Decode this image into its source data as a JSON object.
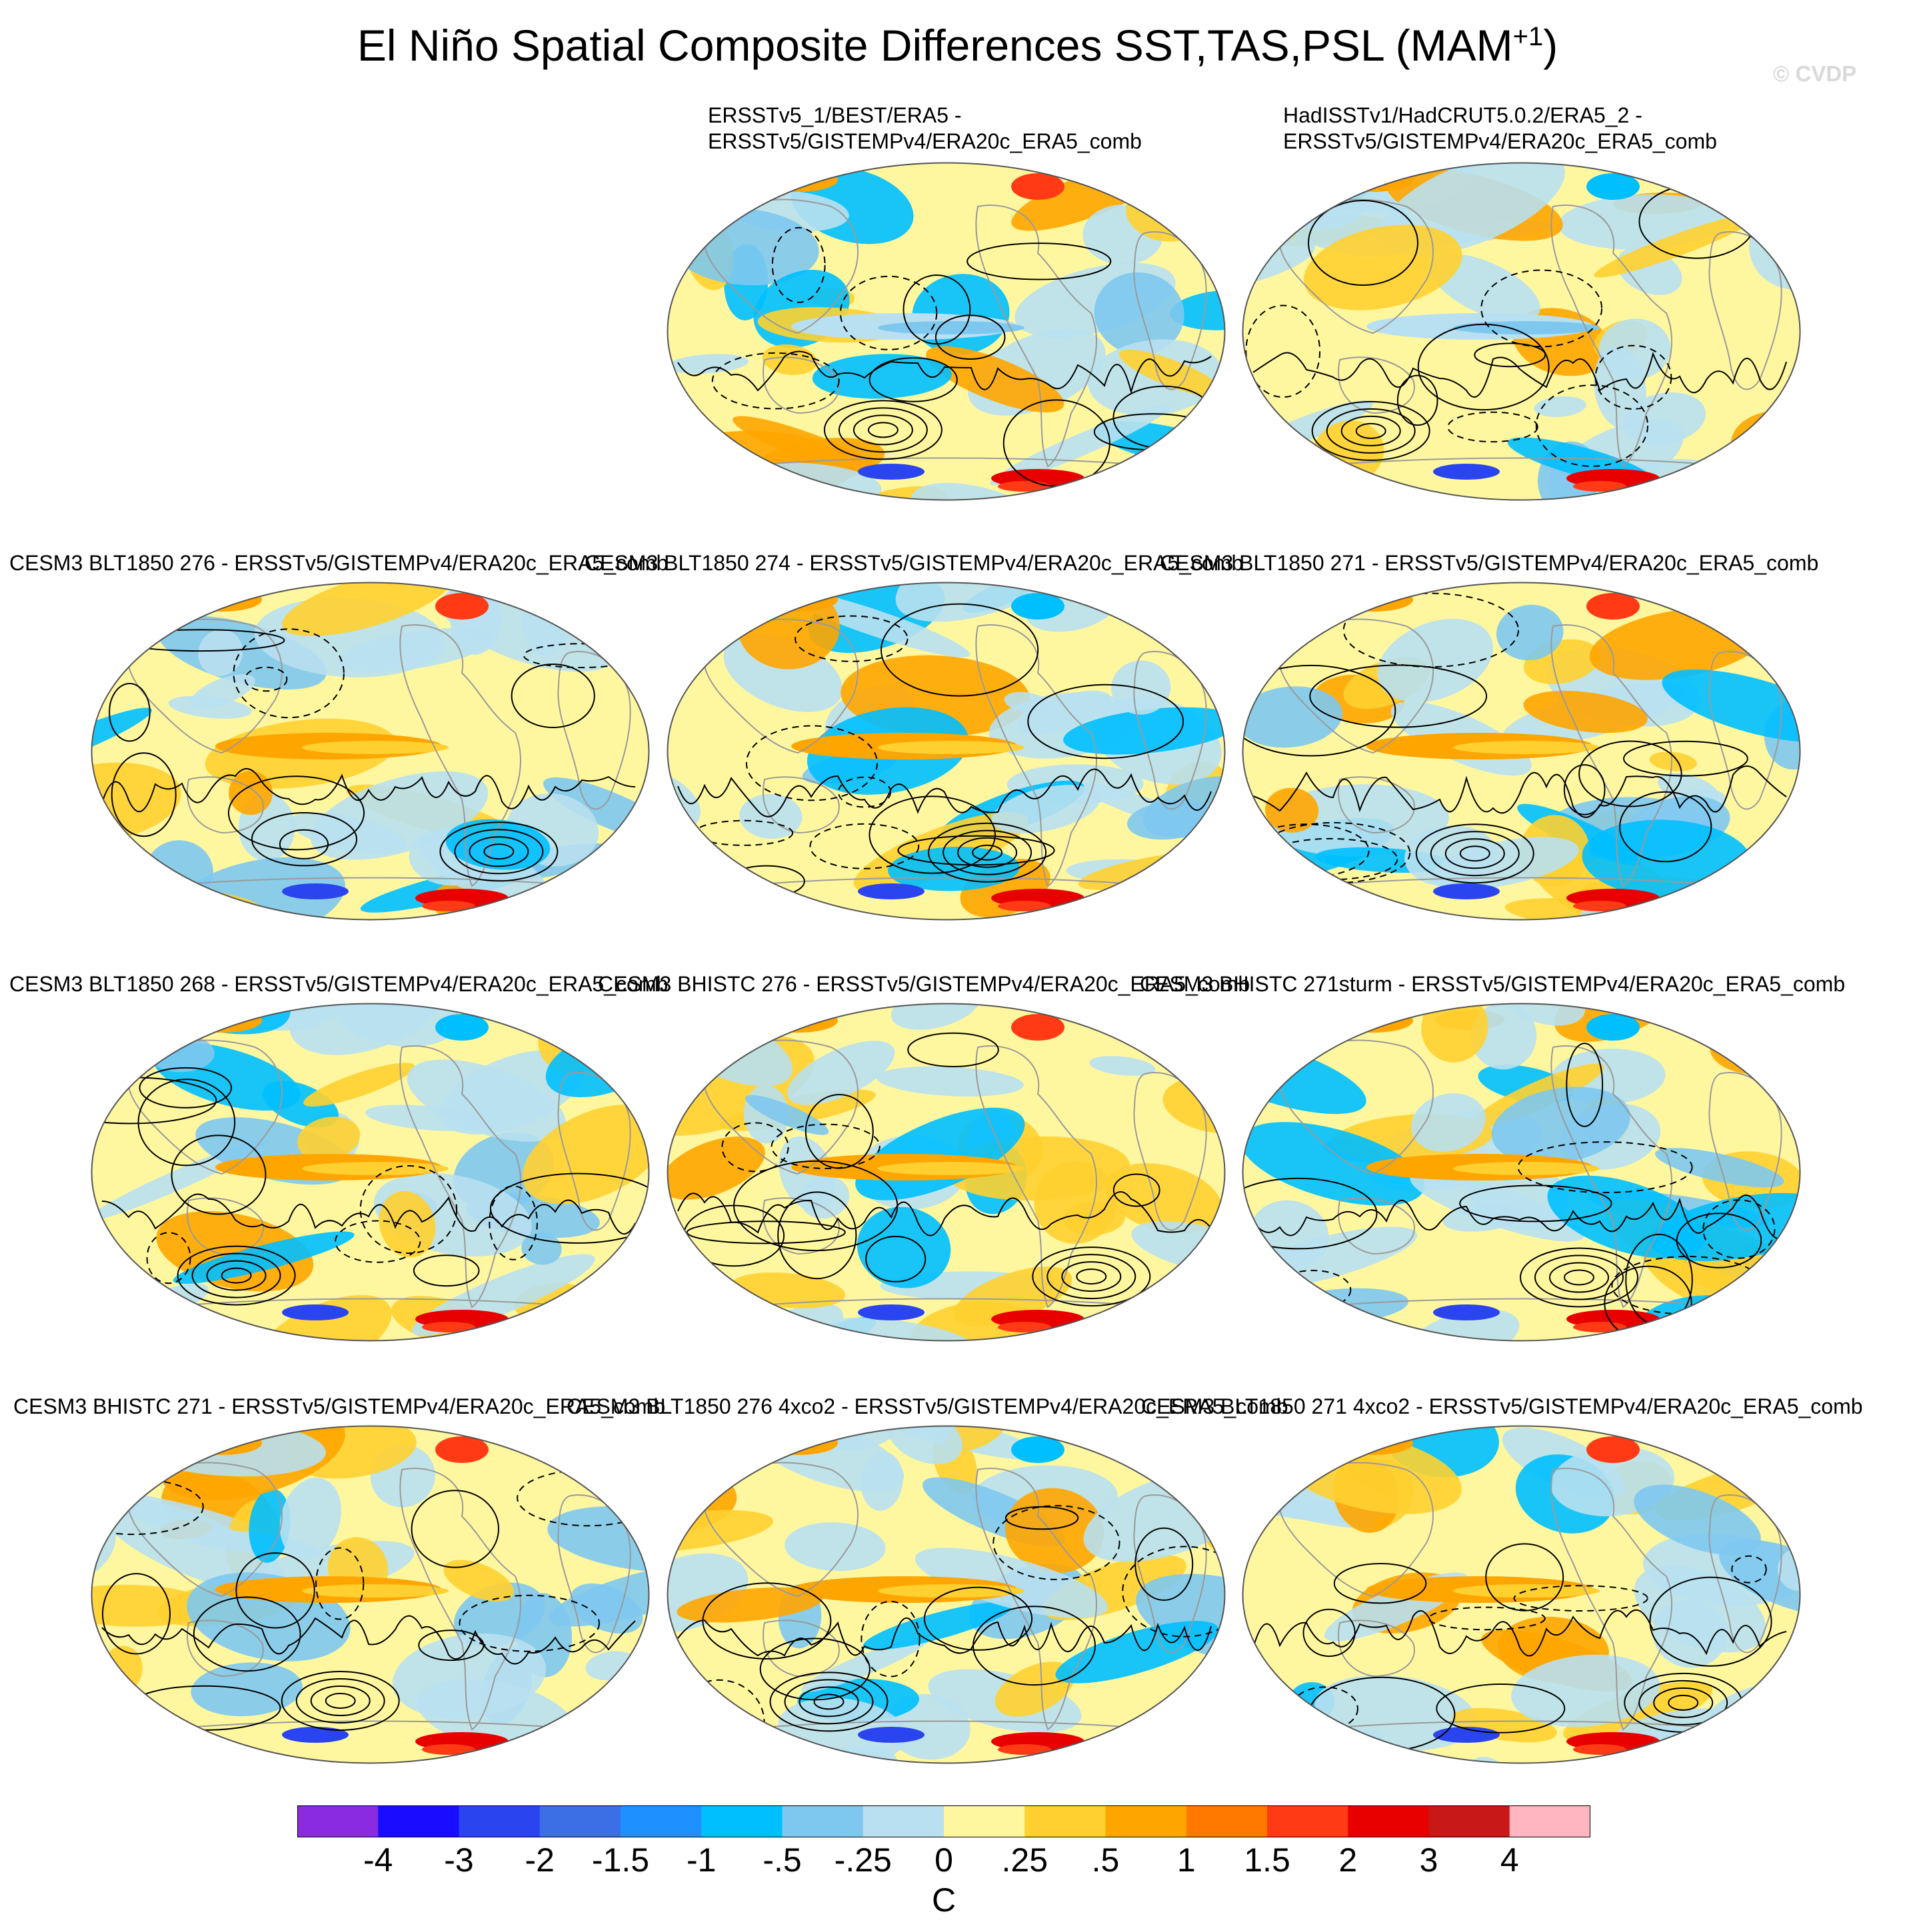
{
  "figure": {
    "title_main": "El Niño Spatial Composite Differences SST,TAS,PSL (MAM",
    "title_sup": "+1",
    "title_end": ")",
    "watermark": "© CVDP"
  },
  "panels": [
    {
      "id": "p1",
      "title_line1": "ERSSTv5_1/BEST/ERA5 -",
      "title_line2": "ERSSTv5/GISTEMPv4/ERA20c_ERA5_comb"
    },
    {
      "id": "p2",
      "title_line1": "HadISSTv1/HadCRUT5.0.2/ERA5_2 -",
      "title_line2": "ERSSTv5/GISTEMPv4/ERA20c_ERA5_comb"
    },
    {
      "id": "p3",
      "title_line1": "CESM3 BLT1850 276 - ERSSTv5/GISTEMPv4/ERA20c_ERA5_comb",
      "title_line2": ""
    },
    {
      "id": "p4",
      "title_line1": "CESM3 BLT1850 274 - ERSSTv5/GISTEMPv4/ERA20c_ERA5_comb",
      "title_line2": ""
    },
    {
      "id": "p5",
      "title_line1": "CESM3 BLT1850 271 - ERSSTv5/GISTEMPv4/ERA20c_ERA5_comb",
      "title_line2": ""
    },
    {
      "id": "p6",
      "title_line1": "CESM3 BLT1850 268 - ERSSTv5/GISTEMPv4/ERA20c_ERA5_comb",
      "title_line2": ""
    },
    {
      "id": "p7",
      "title_line1": "CESM3 BHISTC 276 - ERSSTv5/GISTEMPv4/ERA20c_ERA5_comb",
      "title_line2": ""
    },
    {
      "id": "p8",
      "title_line1": "CESM3 BHISTC 271sturm - ERSSTv5/GISTEMPv4/ERA20c_ERA5_comb",
      "title_line2": ""
    },
    {
      "id": "p9",
      "title_line1": "CESM3 BHISTC 271 - ERSSTv5/GISTEMPv4/ERA20c_ERA5_comb",
      "title_line2": ""
    },
    {
      "id": "p10",
      "title_line1": "CESM3 BLT1850 276 4xco2 - ERSSTv5/GISTEMPv4/ERA20c_ERA5_comb",
      "title_line2": ""
    },
    {
      "id": "p11",
      "title_line1": "CESM3 BLT1850 271 4xco2 - ERSSTv5/GISTEMPv4/ERA20c_ERA5_comb",
      "title_line2": ""
    }
  ],
  "colorbar": {
    "colors": [
      "#8a2be2",
      "#1a0dff",
      "#2a45f0",
      "#3c6fe6",
      "#1e90ff",
      "#00bfff",
      "#7ec8f0",
      "#b8e0f0",
      "#fff7a0",
      "#ffd030",
      "#ffa500",
      "#ff7800",
      "#ff3a14",
      "#e80000",
      "#c81818",
      "#ffb6c1"
    ],
    "labels": [
      "-4",
      "-3",
      "-2",
      "-1.5",
      "-1",
      "-.5",
      "-.25",
      "0",
      ".25",
      ".5",
      "1",
      "1.5",
      "2",
      "3",
      "4"
    ],
    "unit": "C"
  },
  "map_palette": {
    "yellow": "#fff7a0",
    "light_blue": "#b8e0f0",
    "mid_blue": "#7ec8f0",
    "blue": "#00bfff",
    "orange_light": "#ffd030",
    "orange": "#ffa500",
    "red": "#ff3a14",
    "dark_red": "#e80000",
    "dark_blue": "#2a45f0"
  }
}
